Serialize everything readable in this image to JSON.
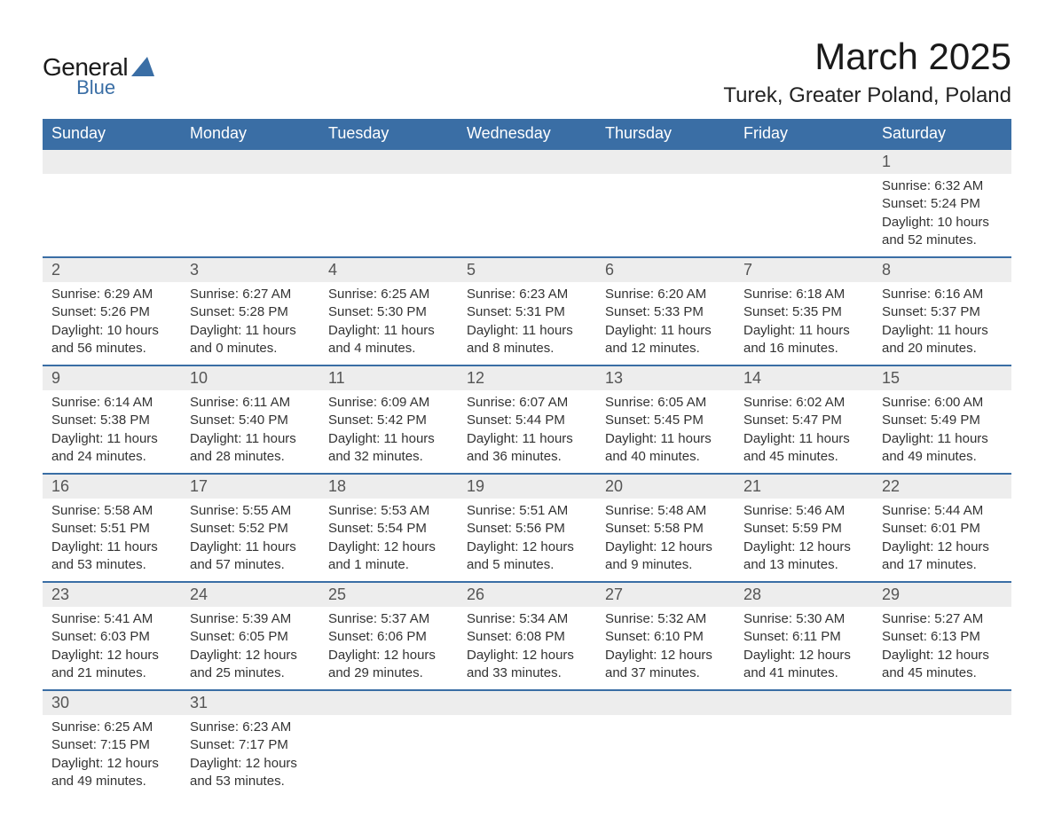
{
  "logo": {
    "general": "General",
    "blue": "Blue",
    "shape_color": "#3a6ea5"
  },
  "title": "March 2025",
  "location": "Turek, Greater Poland, Poland",
  "colors": {
    "header_bg": "#3a6ea5",
    "header_text": "#ffffff",
    "daynum_bg": "#ededed",
    "daynum_text": "#555555",
    "content_text": "#333333",
    "border": "#3a6ea5"
  },
  "weekdays": [
    "Sunday",
    "Monday",
    "Tuesday",
    "Wednesday",
    "Thursday",
    "Friday",
    "Saturday"
  ],
  "weeks": [
    [
      {
        "day": "",
        "sunrise": "",
        "sunset": "",
        "daylight": ""
      },
      {
        "day": "",
        "sunrise": "",
        "sunset": "",
        "daylight": ""
      },
      {
        "day": "",
        "sunrise": "",
        "sunset": "",
        "daylight": ""
      },
      {
        "day": "",
        "sunrise": "",
        "sunset": "",
        "daylight": ""
      },
      {
        "day": "",
        "sunrise": "",
        "sunset": "",
        "daylight": ""
      },
      {
        "day": "",
        "sunrise": "",
        "sunset": "",
        "daylight": ""
      },
      {
        "day": "1",
        "sunrise": "Sunrise: 6:32 AM",
        "sunset": "Sunset: 5:24 PM",
        "daylight": "Daylight: 10 hours and 52 minutes."
      }
    ],
    [
      {
        "day": "2",
        "sunrise": "Sunrise: 6:29 AM",
        "sunset": "Sunset: 5:26 PM",
        "daylight": "Daylight: 10 hours and 56 minutes."
      },
      {
        "day": "3",
        "sunrise": "Sunrise: 6:27 AM",
        "sunset": "Sunset: 5:28 PM",
        "daylight": "Daylight: 11 hours and 0 minutes."
      },
      {
        "day": "4",
        "sunrise": "Sunrise: 6:25 AM",
        "sunset": "Sunset: 5:30 PM",
        "daylight": "Daylight: 11 hours and 4 minutes."
      },
      {
        "day": "5",
        "sunrise": "Sunrise: 6:23 AM",
        "sunset": "Sunset: 5:31 PM",
        "daylight": "Daylight: 11 hours and 8 minutes."
      },
      {
        "day": "6",
        "sunrise": "Sunrise: 6:20 AM",
        "sunset": "Sunset: 5:33 PM",
        "daylight": "Daylight: 11 hours and 12 minutes."
      },
      {
        "day": "7",
        "sunrise": "Sunrise: 6:18 AM",
        "sunset": "Sunset: 5:35 PM",
        "daylight": "Daylight: 11 hours and 16 minutes."
      },
      {
        "day": "8",
        "sunrise": "Sunrise: 6:16 AM",
        "sunset": "Sunset: 5:37 PM",
        "daylight": "Daylight: 11 hours and 20 minutes."
      }
    ],
    [
      {
        "day": "9",
        "sunrise": "Sunrise: 6:14 AM",
        "sunset": "Sunset: 5:38 PM",
        "daylight": "Daylight: 11 hours and 24 minutes."
      },
      {
        "day": "10",
        "sunrise": "Sunrise: 6:11 AM",
        "sunset": "Sunset: 5:40 PM",
        "daylight": "Daylight: 11 hours and 28 minutes."
      },
      {
        "day": "11",
        "sunrise": "Sunrise: 6:09 AM",
        "sunset": "Sunset: 5:42 PM",
        "daylight": "Daylight: 11 hours and 32 minutes."
      },
      {
        "day": "12",
        "sunrise": "Sunrise: 6:07 AM",
        "sunset": "Sunset: 5:44 PM",
        "daylight": "Daylight: 11 hours and 36 minutes."
      },
      {
        "day": "13",
        "sunrise": "Sunrise: 6:05 AM",
        "sunset": "Sunset: 5:45 PM",
        "daylight": "Daylight: 11 hours and 40 minutes."
      },
      {
        "day": "14",
        "sunrise": "Sunrise: 6:02 AM",
        "sunset": "Sunset: 5:47 PM",
        "daylight": "Daylight: 11 hours and 45 minutes."
      },
      {
        "day": "15",
        "sunrise": "Sunrise: 6:00 AM",
        "sunset": "Sunset: 5:49 PM",
        "daylight": "Daylight: 11 hours and 49 minutes."
      }
    ],
    [
      {
        "day": "16",
        "sunrise": "Sunrise: 5:58 AM",
        "sunset": "Sunset: 5:51 PM",
        "daylight": "Daylight: 11 hours and 53 minutes."
      },
      {
        "day": "17",
        "sunrise": "Sunrise: 5:55 AM",
        "sunset": "Sunset: 5:52 PM",
        "daylight": "Daylight: 11 hours and 57 minutes."
      },
      {
        "day": "18",
        "sunrise": "Sunrise: 5:53 AM",
        "sunset": "Sunset: 5:54 PM",
        "daylight": "Daylight: 12 hours and 1 minute."
      },
      {
        "day": "19",
        "sunrise": "Sunrise: 5:51 AM",
        "sunset": "Sunset: 5:56 PM",
        "daylight": "Daylight: 12 hours and 5 minutes."
      },
      {
        "day": "20",
        "sunrise": "Sunrise: 5:48 AM",
        "sunset": "Sunset: 5:58 PM",
        "daylight": "Daylight: 12 hours and 9 minutes."
      },
      {
        "day": "21",
        "sunrise": "Sunrise: 5:46 AM",
        "sunset": "Sunset: 5:59 PM",
        "daylight": "Daylight: 12 hours and 13 minutes."
      },
      {
        "day": "22",
        "sunrise": "Sunrise: 5:44 AM",
        "sunset": "Sunset: 6:01 PM",
        "daylight": "Daylight: 12 hours and 17 minutes."
      }
    ],
    [
      {
        "day": "23",
        "sunrise": "Sunrise: 5:41 AM",
        "sunset": "Sunset: 6:03 PM",
        "daylight": "Daylight: 12 hours and 21 minutes."
      },
      {
        "day": "24",
        "sunrise": "Sunrise: 5:39 AM",
        "sunset": "Sunset: 6:05 PM",
        "daylight": "Daylight: 12 hours and 25 minutes."
      },
      {
        "day": "25",
        "sunrise": "Sunrise: 5:37 AM",
        "sunset": "Sunset: 6:06 PM",
        "daylight": "Daylight: 12 hours and 29 minutes."
      },
      {
        "day": "26",
        "sunrise": "Sunrise: 5:34 AM",
        "sunset": "Sunset: 6:08 PM",
        "daylight": "Daylight: 12 hours and 33 minutes."
      },
      {
        "day": "27",
        "sunrise": "Sunrise: 5:32 AM",
        "sunset": "Sunset: 6:10 PM",
        "daylight": "Daylight: 12 hours and 37 minutes."
      },
      {
        "day": "28",
        "sunrise": "Sunrise: 5:30 AM",
        "sunset": "Sunset: 6:11 PM",
        "daylight": "Daylight: 12 hours and 41 minutes."
      },
      {
        "day": "29",
        "sunrise": "Sunrise: 5:27 AM",
        "sunset": "Sunset: 6:13 PM",
        "daylight": "Daylight: 12 hours and 45 minutes."
      }
    ],
    [
      {
        "day": "30",
        "sunrise": "Sunrise: 6:25 AM",
        "sunset": "Sunset: 7:15 PM",
        "daylight": "Daylight: 12 hours and 49 minutes."
      },
      {
        "day": "31",
        "sunrise": "Sunrise: 6:23 AM",
        "sunset": "Sunset: 7:17 PM",
        "daylight": "Daylight: 12 hours and 53 minutes."
      },
      {
        "day": "",
        "sunrise": "",
        "sunset": "",
        "daylight": ""
      },
      {
        "day": "",
        "sunrise": "",
        "sunset": "",
        "daylight": ""
      },
      {
        "day": "",
        "sunrise": "",
        "sunset": "",
        "daylight": ""
      },
      {
        "day": "",
        "sunrise": "",
        "sunset": "",
        "daylight": ""
      },
      {
        "day": "",
        "sunrise": "",
        "sunset": "",
        "daylight": ""
      }
    ]
  ]
}
